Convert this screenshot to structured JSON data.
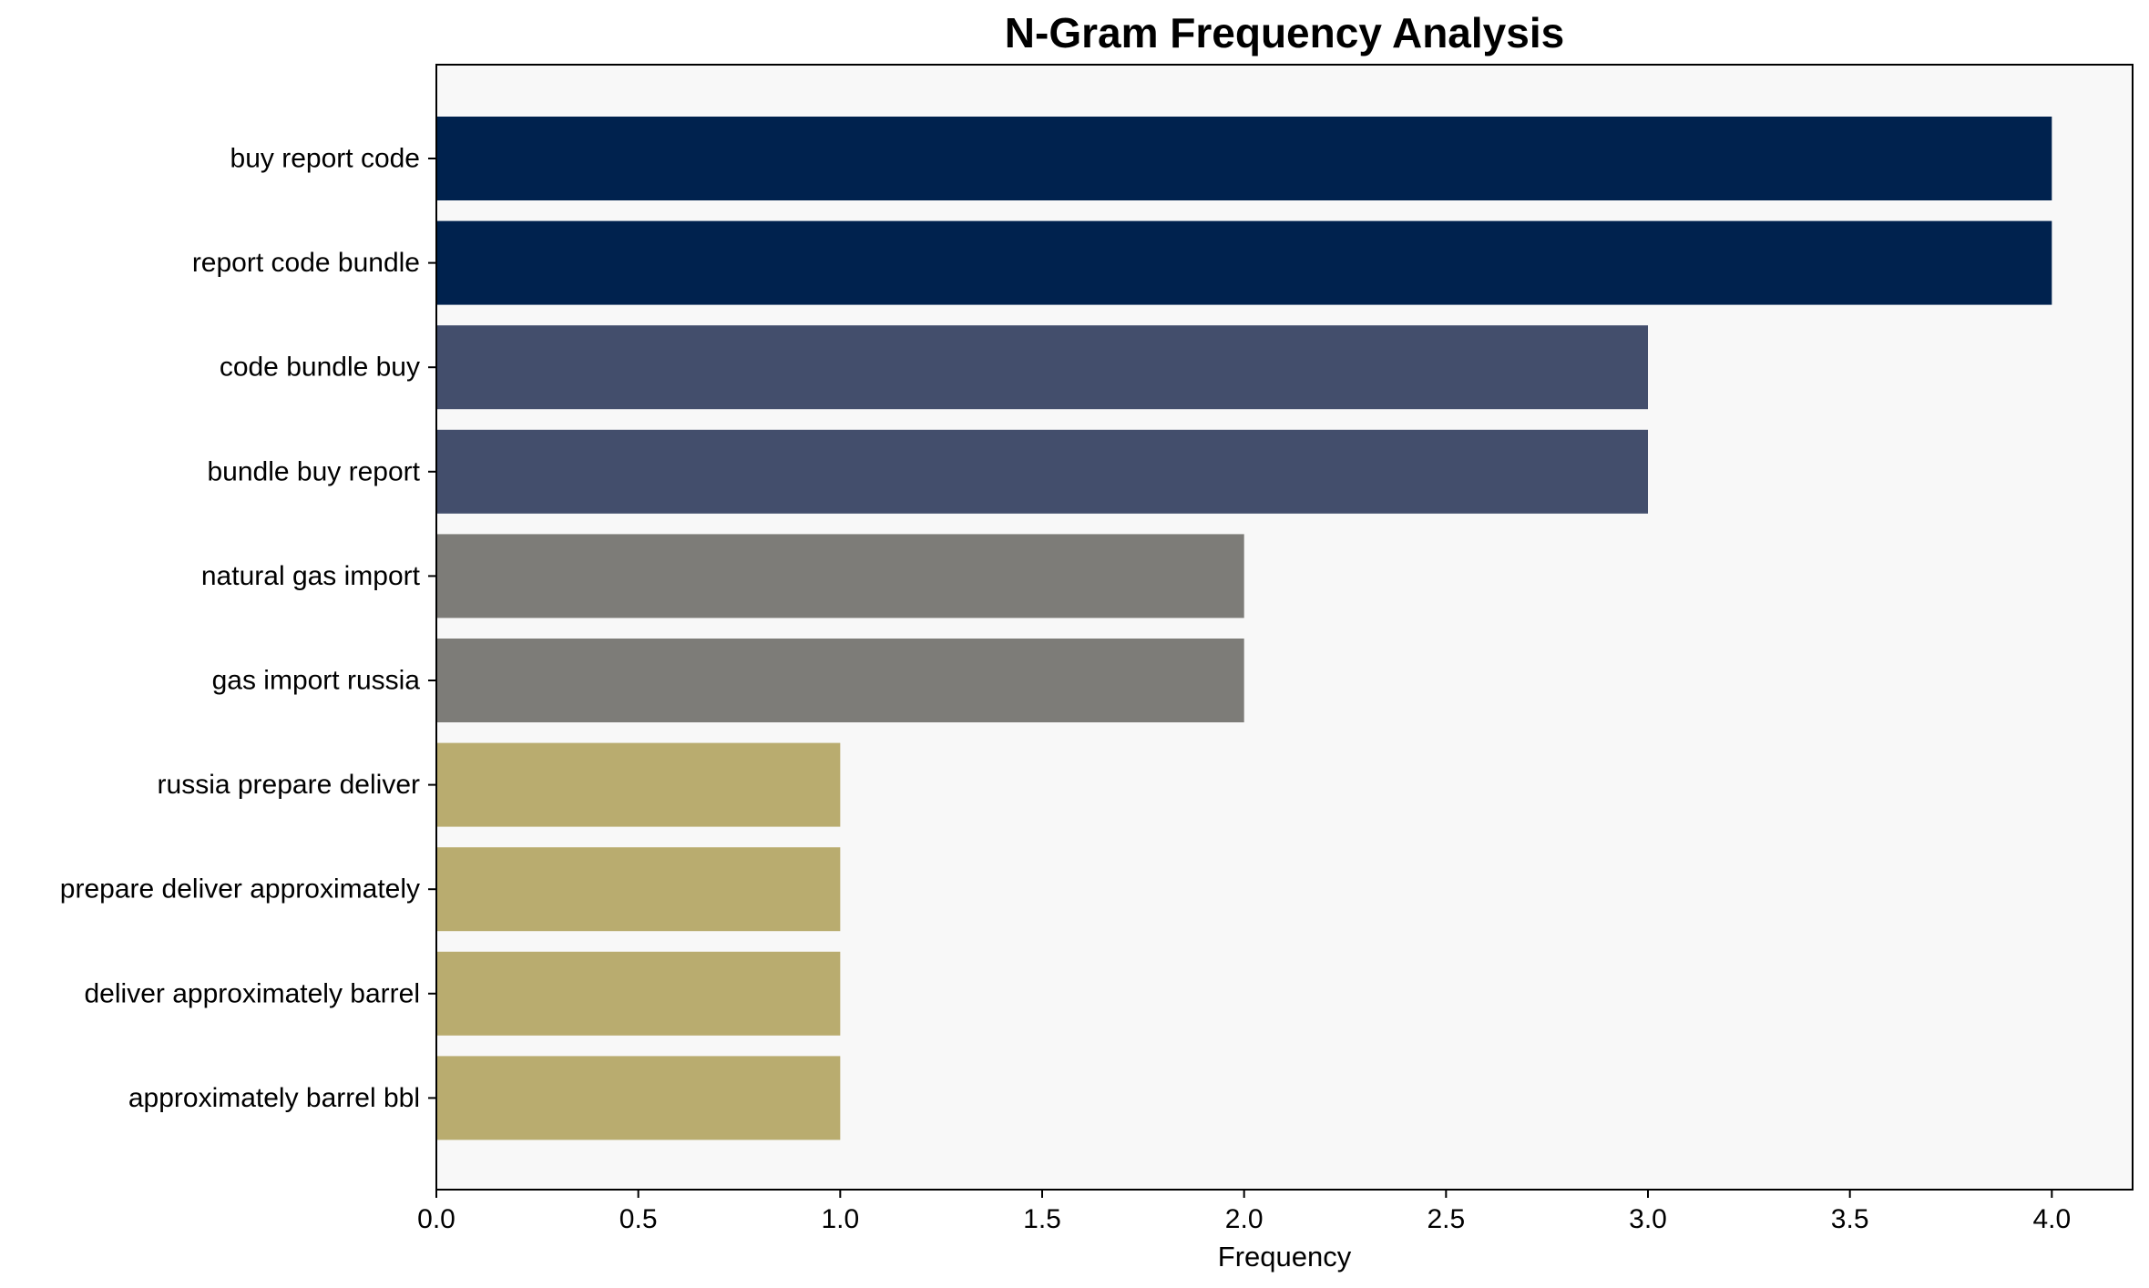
{
  "chart_data": {
    "type": "bar",
    "orientation": "horizontal",
    "title": "N-Gram Frequency Analysis",
    "xlabel": "Frequency",
    "ylabel": "",
    "xlim": [
      0,
      4.2
    ],
    "x_ticks": [
      0.0,
      0.5,
      1.0,
      1.5,
      2.0,
      2.5,
      3.0,
      3.5,
      4.0
    ],
    "x_tick_labels": [
      "0.0",
      "0.5",
      "1.0",
      "1.5",
      "2.0",
      "2.5",
      "3.0",
      "3.5",
      "4.0"
    ],
    "grid": false,
    "legend": "none",
    "categories": [
      "buy report code",
      "report code bundle",
      "code bundle buy",
      "bundle buy report",
      "natural gas import",
      "gas import russia",
      "russia prepare deliver",
      "prepare deliver approximately",
      "deliver approximately barrel",
      "approximately barrel bbl"
    ],
    "values": [
      4,
      4,
      3,
      3,
      2,
      2,
      1,
      1,
      1,
      1
    ],
    "bar_colors": [
      "#00224e",
      "#00224e",
      "#434e6c",
      "#434e6c",
      "#7d7c78",
      "#7d7c78",
      "#b9ac6f",
      "#b9ac6f",
      "#b9ac6f",
      "#b9ac6f"
    ],
    "plot_background": "#f8f8f8"
  }
}
